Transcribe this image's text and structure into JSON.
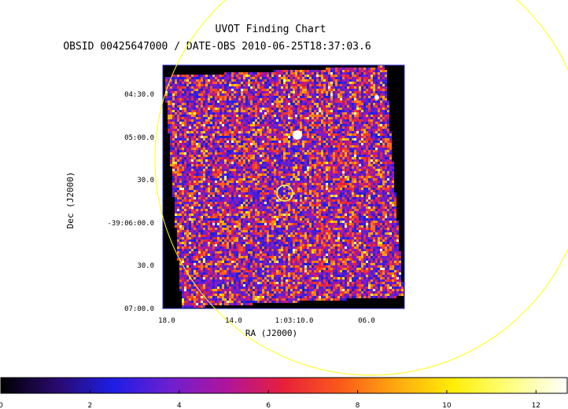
{
  "chart_data": {
    "type": "heatmap",
    "title": "UVOT Finding Chart",
    "subtitle": "OBSID 00425647000 / DATE-OBS 2010-06-25T18:37:03.6",
    "xlabel": "RA (J2000)",
    "ylabel": "Dec (J2000)",
    "x_ticks": [
      "18.0",
      "14.0",
      "1:03:10.0",
      "06.0"
    ],
    "y_ticks": [
      "04:30.0",
      "05:00.0",
      "30.0",
      "-39:06:00.0",
      "30.0",
      "07:00.0"
    ],
    "colorbar": {
      "ticks": [
        "0",
        "2",
        "4",
        "6",
        "8",
        "10",
        "12"
      ],
      "range": [
        0,
        12.7
      ],
      "colormap": [
        "#000000",
        "#2a0a6e",
        "#1e1ee6",
        "#6f1fd0",
        "#b0159a",
        "#e8203a",
        "#fb5a1a",
        "#ffaa10",
        "#ffee08",
        "#ffff80",
        "#ffffff"
      ]
    },
    "overlays": [
      {
        "kind": "circle",
        "name": "source-region",
        "color": "#ffff00"
      },
      {
        "kind": "circle",
        "name": "error-circle",
        "color": "#ffff00"
      }
    ],
    "grid": false
  }
}
